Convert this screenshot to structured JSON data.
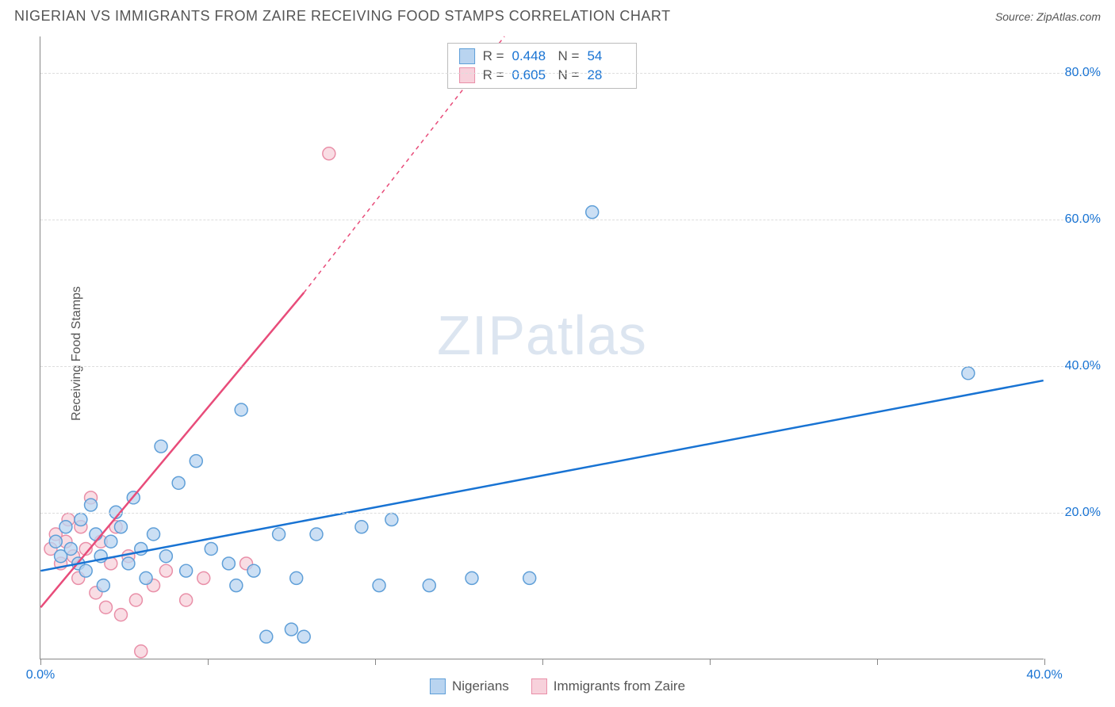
{
  "title": "NIGERIAN VS IMMIGRANTS FROM ZAIRE RECEIVING FOOD STAMPS CORRELATION CHART",
  "source": "Source: ZipAtlas.com",
  "watermark": {
    "part1": "ZIP",
    "part2": "atlas"
  },
  "ylabel": "Receiving Food Stamps",
  "chart": {
    "type": "scatter",
    "xlim": [
      0,
      40
    ],
    "ylim": [
      0,
      85
    ],
    "ytick_step": 20,
    "yticks": [
      20,
      40,
      60,
      80
    ],
    "ytick_labels": [
      "20.0%",
      "40.0%",
      "60.0%",
      "80.0%"
    ],
    "xticks": [
      0,
      6.67,
      13.33,
      20,
      26.67,
      33.33,
      40
    ],
    "xtick_labels_shown": {
      "first": "0.0%",
      "last": "40.0%"
    },
    "background_color": "#ffffff",
    "grid_color": "#dddddd",
    "axis_color": "#888888",
    "marker_radius": 8,
    "marker_stroke_width": 1.5,
    "line_width": 2.5,
    "dash_pattern": "5,5",
    "series": {
      "nigerians": {
        "label": "Nigerians",
        "fill": "#b9d4f0",
        "stroke": "#5f9fd8",
        "line_color": "#1873d3",
        "R": "0.448",
        "N": "54",
        "trend_solid": {
          "x1": 0,
          "y1": 12,
          "x2": 40,
          "y2": 38
        },
        "points": [
          [
            0.6,
            16
          ],
          [
            0.8,
            14
          ],
          [
            1.0,
            18
          ],
          [
            1.2,
            15
          ],
          [
            1.5,
            13
          ],
          [
            1.6,
            19
          ],
          [
            1.8,
            12
          ],
          [
            2.0,
            21
          ],
          [
            2.2,
            17
          ],
          [
            2.4,
            14
          ],
          [
            2.5,
            10
          ],
          [
            2.8,
            16
          ],
          [
            3.0,
            20
          ],
          [
            3.2,
            18
          ],
          [
            3.5,
            13
          ],
          [
            3.7,
            22
          ],
          [
            4.0,
            15
          ],
          [
            4.2,
            11
          ],
          [
            4.5,
            17
          ],
          [
            4.8,
            29
          ],
          [
            5.0,
            14
          ],
          [
            5.5,
            24
          ],
          [
            5.8,
            12
          ],
          [
            6.2,
            27
          ],
          [
            6.8,
            15
          ],
          [
            7.5,
            13
          ],
          [
            7.8,
            10
          ],
          [
            8.0,
            34
          ],
          [
            8.5,
            12
          ],
          [
            9.0,
            3
          ],
          [
            9.5,
            17
          ],
          [
            10.0,
            4
          ],
          [
            10.2,
            11
          ],
          [
            10.5,
            3
          ],
          [
            11.0,
            17
          ],
          [
            12.8,
            18
          ],
          [
            13.5,
            10
          ],
          [
            14.0,
            19
          ],
          [
            15.5,
            10
          ],
          [
            17.2,
            11
          ],
          [
            19.5,
            11
          ],
          [
            22.0,
            61
          ],
          [
            37.0,
            39
          ]
        ]
      },
      "zaire": {
        "label": "Immigrants from Zaire",
        "fill": "#f7d1db",
        "stroke": "#e98fa8",
        "line_color": "#e84c7a",
        "R": "0.605",
        "N": "28",
        "trend_solid": {
          "x1": 0,
          "y1": 7,
          "x2": 10.5,
          "y2": 50
        },
        "trend_dashed": {
          "x1": 10.5,
          "y1": 50,
          "x2": 18.5,
          "y2": 85
        },
        "points": [
          [
            0.4,
            15
          ],
          [
            0.6,
            17
          ],
          [
            0.8,
            13
          ],
          [
            1.0,
            16
          ],
          [
            1.1,
            19
          ],
          [
            1.3,
            14
          ],
          [
            1.5,
            11
          ],
          [
            1.6,
            18
          ],
          [
            1.8,
            15
          ],
          [
            2.0,
            22
          ],
          [
            2.2,
            9
          ],
          [
            2.4,
            16
          ],
          [
            2.6,
            7
          ],
          [
            2.8,
            13
          ],
          [
            3.0,
            18
          ],
          [
            3.2,
            6
          ],
          [
            3.5,
            14
          ],
          [
            3.8,
            8
          ],
          [
            4.0,
            1
          ],
          [
            4.5,
            10
          ],
          [
            5.0,
            12
          ],
          [
            5.8,
            8
          ],
          [
            6.5,
            11
          ],
          [
            8.2,
            13
          ],
          [
            11.5,
            69
          ]
        ]
      }
    }
  },
  "stats_legend": {
    "rows": [
      {
        "swatch_fill": "#b9d4f0",
        "swatch_stroke": "#5f9fd8",
        "R_lbl": "R =",
        "R_val": "0.448",
        "N_lbl": "N =",
        "N_val": "54"
      },
      {
        "swatch_fill": "#f7d1db",
        "swatch_stroke": "#e98fa8",
        "R_lbl": "R =",
        "R_val": "0.605",
        "N_lbl": "N =",
        "N_val": "28"
      }
    ]
  },
  "bottom_legend": [
    {
      "fill": "#b9d4f0",
      "stroke": "#5f9fd8",
      "label": "Nigerians"
    },
    {
      "fill": "#f7d1db",
      "stroke": "#e98fa8",
      "label": "Immigrants from Zaire"
    }
  ]
}
